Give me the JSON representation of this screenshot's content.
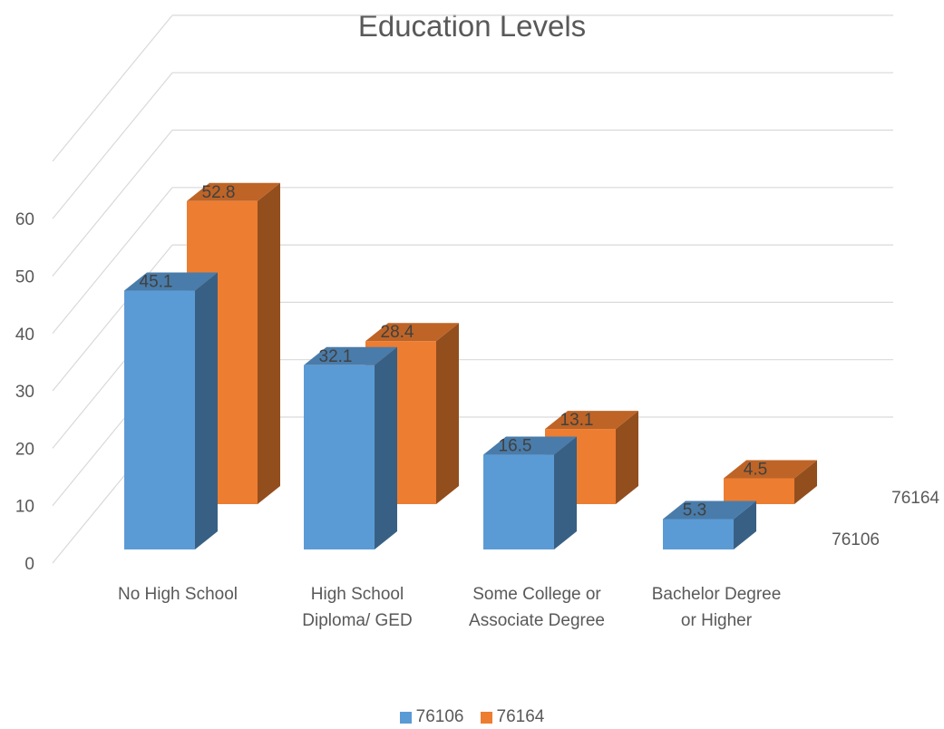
{
  "chart_data": {
    "type": "bar",
    "style": "3d-clustered-column",
    "title": "Education Levels",
    "categories": [
      [
        "No High School"
      ],
      [
        "High School",
        "Diploma/ GED"
      ],
      [
        "Some College or",
        "Associate Degree"
      ],
      [
        "Bachelor Degree",
        "or Higher"
      ]
    ],
    "series": [
      {
        "name": "76106",
        "values": [
          45.1,
          32.1,
          16.5,
          5.3
        ],
        "color": "#5b9bd5"
      },
      {
        "name": "76164",
        "values": [
          52.8,
          28.4,
          13.1,
          4.5
        ],
        "color": "#ed7d31"
      }
    ],
    "ylim": [
      0,
      60
    ],
    "yticks": [
      "0",
      "10",
      "20",
      "30",
      "40",
      "50",
      "60"
    ],
    "grid": true,
    "legend": "bottom",
    "depth_axis_labels": [
      "76106",
      "76164"
    ]
  }
}
